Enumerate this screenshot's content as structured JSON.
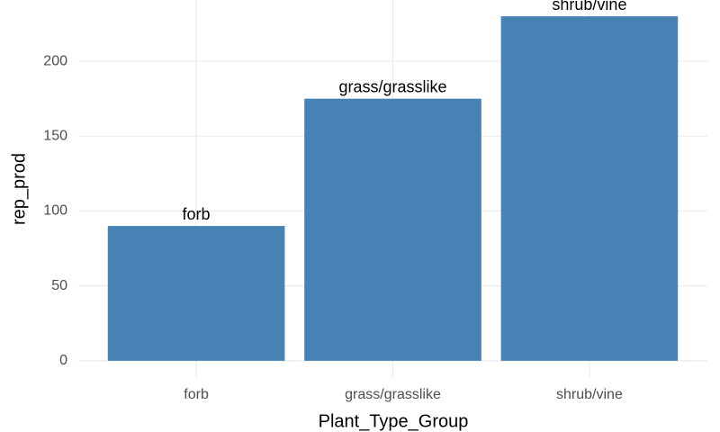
{
  "chart_data": {
    "type": "bar",
    "x_label": "Plant_Type_Group",
    "y_label": "rep_prod",
    "categories": [
      "forb",
      "grass/grasslike",
      "shrub/vine"
    ],
    "values": [
      90,
      175,
      230
    ],
    "color": "#4682b4",
    "ylim": [
      -11.5,
      241.5
    ],
    "yticks": [
      0,
      50,
      100,
      150,
      200
    ],
    "grid": true
  }
}
